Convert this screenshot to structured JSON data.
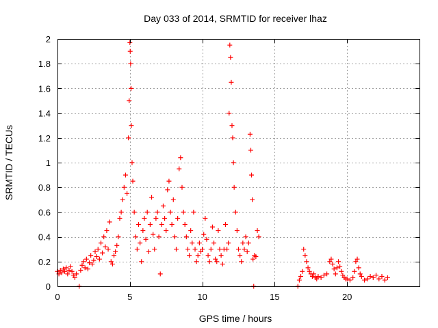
{
  "chart_data": {
    "type": "scatter",
    "title": "Day 033 of 2014, SRMTID for receiver lhaz",
    "xlabel": "GPS time / hours",
    "ylabel": "SRMTID / TECUs",
    "xlim": [
      0,
      25
    ],
    "ylim": [
      0,
      2
    ],
    "x_ticks": [
      0,
      5,
      10,
      15,
      20
    ],
    "x_tick_labels": [
      "0",
      "5",
      "10",
      "15",
      "20"
    ],
    "y_ticks": [
      0,
      0.2,
      0.4,
      0.6,
      0.8,
      1,
      1.2,
      1.4,
      1.6,
      1.8,
      2
    ],
    "y_tick_labels": [
      "0",
      "0.2",
      "0.4",
      "0.6",
      "0.8",
      "1",
      "1.2",
      "1.4",
      "1.6",
      "1.8",
      "2"
    ],
    "grid": true,
    "marker": "plus",
    "color": "#ff0000",
    "series": [
      {
        "name": "SRMTID",
        "points": [
          [
            0.0,
            0.12
          ],
          [
            0.1,
            0.1
          ],
          [
            0.2,
            0.13
          ],
          [
            0.3,
            0.11
          ],
          [
            0.4,
            0.14
          ],
          [
            0.5,
            0.12
          ],
          [
            0.6,
            0.15
          ],
          [
            0.7,
            0.1
          ],
          [
            0.8,
            0.13
          ],
          [
            0.9,
            0.16
          ],
          [
            1.0,
            0.12
          ],
          [
            1.1,
            0.09
          ],
          [
            1.2,
            0.07
          ],
          [
            1.3,
            0.1
          ],
          [
            1.5,
            0.0
          ],
          [
            1.6,
            0.13
          ],
          [
            1.7,
            0.17
          ],
          [
            1.8,
            0.2
          ],
          [
            1.9,
            0.15
          ],
          [
            2.0,
            0.22
          ],
          [
            2.1,
            0.14
          ],
          [
            2.2,
            0.19
          ],
          [
            2.3,
            0.25
          ],
          [
            2.4,
            0.18
          ],
          [
            2.5,
            0.21
          ],
          [
            2.6,
            0.28
          ],
          [
            2.7,
            0.24
          ],
          [
            2.8,
            0.3
          ],
          [
            2.9,
            0.22
          ],
          [
            3.0,
            0.35
          ],
          [
            3.1,
            0.27
          ],
          [
            3.2,
            0.4
          ],
          [
            3.3,
            0.32
          ],
          [
            3.4,
            0.45
          ],
          [
            3.5,
            0.3
          ],
          [
            3.6,
            0.52
          ],
          [
            3.7,
            0.2
          ],
          [
            3.8,
            0.18
          ],
          [
            3.9,
            0.25
          ],
          [
            4.0,
            0.28
          ],
          [
            4.1,
            0.33
          ],
          [
            4.2,
            0.4
          ],
          [
            4.3,
            0.55
          ],
          [
            4.4,
            0.6
          ],
          [
            4.5,
            0.7
          ],
          [
            4.6,
            0.8
          ],
          [
            4.7,
            0.9
          ],
          [
            4.8,
            0.75
          ],
          [
            4.9,
            1.2
          ],
          [
            4.95,
            1.5
          ],
          [
            5.0,
            1.97
          ],
          [
            5.02,
            1.9
          ],
          [
            5.05,
            1.8
          ],
          [
            5.08,
            1.6
          ],
          [
            5.1,
            1.3
          ],
          [
            5.15,
            1.0
          ],
          [
            5.2,
            0.85
          ],
          [
            5.3,
            0.6
          ],
          [
            5.4,
            0.4
          ],
          [
            5.5,
            0.3
          ],
          [
            5.6,
            0.5
          ],
          [
            5.7,
            0.35
          ],
          [
            5.8,
            0.2
          ],
          [
            5.9,
            0.45
          ],
          [
            6.0,
            0.55
          ],
          [
            6.1,
            0.38
          ],
          [
            6.2,
            0.6
          ],
          [
            6.3,
            0.28
          ],
          [
            6.4,
            0.5
          ],
          [
            6.5,
            0.72
          ],
          [
            6.6,
            0.42
          ],
          [
            6.7,
            0.3
          ],
          [
            6.8,
            0.55
          ],
          [
            6.9,
            0.6
          ],
          [
            7.0,
            0.4
          ],
          [
            7.1,
            0.1
          ],
          [
            7.2,
            0.5
          ],
          [
            7.3,
            0.65
          ],
          [
            7.4,
            0.55
          ],
          [
            7.5,
            0.45
          ],
          [
            7.6,
            0.78
          ],
          [
            7.7,
            0.85
          ],
          [
            7.8,
            0.6
          ],
          [
            7.9,
            0.5
          ],
          [
            8.0,
            0.7
          ],
          [
            8.1,
            0.4
          ],
          [
            8.2,
            0.3
          ],
          [
            8.3,
            0.55
          ],
          [
            8.4,
            0.95
          ],
          [
            8.5,
            1.04
          ],
          [
            8.6,
            0.8
          ],
          [
            8.7,
            0.6
          ],
          [
            8.8,
            0.5
          ],
          [
            8.9,
            0.4
          ],
          [
            9.0,
            0.3
          ],
          [
            9.1,
            0.25
          ],
          [
            9.2,
            0.45
          ],
          [
            9.3,
            0.35
          ],
          [
            9.4,
            0.6
          ],
          [
            9.5,
            0.3
          ],
          [
            9.6,
            0.2
          ],
          [
            9.7,
            0.25
          ],
          [
            9.8,
            0.35
          ],
          [
            9.9,
            0.28
          ],
          [
            10.0,
            0.3
          ],
          [
            10.1,
            0.42
          ],
          [
            10.2,
            0.55
          ],
          [
            10.3,
            0.38
          ],
          [
            10.4,
            0.25
          ],
          [
            10.5,
            0.2
          ],
          [
            10.6,
            0.3
          ],
          [
            10.7,
            0.48
          ],
          [
            10.8,
            0.35
          ],
          [
            10.9,
            0.22
          ],
          [
            11.0,
            0.2
          ],
          [
            11.1,
            0.45
          ],
          [
            11.2,
            0.3
          ],
          [
            11.3,
            0.25
          ],
          [
            11.4,
            0.18
          ],
          [
            11.5,
            0.3
          ],
          [
            11.6,
            0.5
          ],
          [
            11.7,
            0.3
          ],
          [
            11.8,
            0.35
          ],
          [
            11.85,
            1.4
          ],
          [
            11.9,
            1.95
          ],
          [
            11.95,
            1.85
          ],
          [
            12.0,
            1.65
          ],
          [
            12.05,
            1.3
          ],
          [
            12.1,
            1.2
          ],
          [
            12.15,
            1.0
          ],
          [
            12.2,
            0.8
          ],
          [
            12.3,
            0.6
          ],
          [
            12.4,
            0.45
          ],
          [
            12.5,
            0.3
          ],
          [
            12.6,
            0.25
          ],
          [
            12.7,
            0.2
          ],
          [
            12.8,
            0.35
          ],
          [
            12.9,
            0.3
          ],
          [
            13.0,
            0.4
          ],
          [
            13.1,
            0.28
          ],
          [
            13.2,
            0.35
          ],
          [
            13.3,
            1.23
          ],
          [
            13.35,
            1.1
          ],
          [
            13.4,
            0.9
          ],
          [
            13.45,
            0.7
          ],
          [
            13.5,
            0.22
          ],
          [
            13.55,
            0.0
          ],
          [
            13.6,
            0.25
          ],
          [
            13.7,
            0.24
          ],
          [
            13.8,
            0.45
          ],
          [
            13.9,
            0.4
          ],
          [
            16.6,
            0.0
          ],
          [
            16.7,
            0.05
          ],
          [
            16.8,
            0.08
          ],
          [
            16.9,
            0.12
          ],
          [
            17.0,
            0.3
          ],
          [
            17.1,
            0.25
          ],
          [
            17.2,
            0.2
          ],
          [
            17.3,
            0.15
          ],
          [
            17.4,
            0.12
          ],
          [
            17.5,
            0.1
          ],
          [
            17.6,
            0.08
          ],
          [
            17.7,
            0.1
          ],
          [
            17.8,
            0.07
          ],
          [
            17.9,
            0.06
          ],
          [
            18.0,
            0.08
          ],
          [
            18.2,
            0.07
          ],
          [
            18.4,
            0.09
          ],
          [
            18.6,
            0.1
          ],
          [
            18.8,
            0.2
          ],
          [
            18.9,
            0.22
          ],
          [
            19.0,
            0.18
          ],
          [
            19.1,
            0.14
          ],
          [
            19.2,
            0.1
          ],
          [
            19.3,
            0.15
          ],
          [
            19.4,
            0.2
          ],
          [
            19.5,
            0.16
          ],
          [
            19.6,
            0.12
          ],
          [
            19.7,
            0.09
          ],
          [
            19.8,
            0.07
          ],
          [
            19.9,
            0.06
          ],
          [
            20.0,
            0.06
          ],
          [
            20.2,
            0.05
          ],
          [
            20.4,
            0.07
          ],
          [
            20.5,
            0.12
          ],
          [
            20.6,
            0.2
          ],
          [
            20.7,
            0.22
          ],
          [
            20.8,
            0.15
          ],
          [
            20.9,
            0.1
          ],
          [
            21.0,
            0.08
          ],
          [
            21.2,
            0.05
          ],
          [
            21.4,
            0.06
          ],
          [
            21.6,
            0.08
          ],
          [
            21.8,
            0.07
          ],
          [
            22.0,
            0.09
          ],
          [
            22.2,
            0.06
          ],
          [
            22.4,
            0.08
          ],
          [
            22.6,
            0.05
          ],
          [
            22.8,
            0.07
          ]
        ]
      }
    ]
  }
}
